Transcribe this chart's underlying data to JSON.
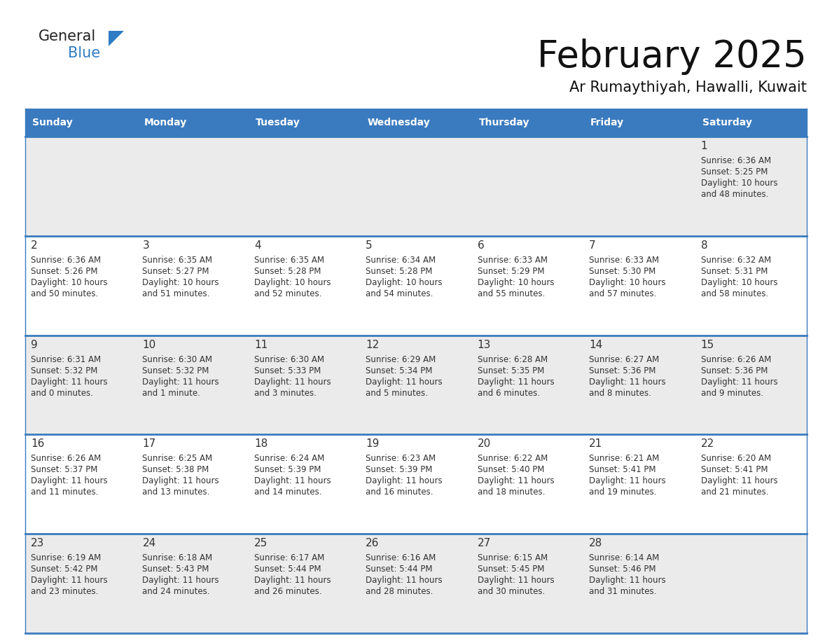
{
  "title": "February 2025",
  "subtitle": "Ar Rumaythiyah, Hawalli, Kuwait",
  "days_of_week": [
    "Sunday",
    "Monday",
    "Tuesday",
    "Wednesday",
    "Thursday",
    "Friday",
    "Saturday"
  ],
  "header_bg": "#3a7bbf",
  "header_text": "#FFFFFF",
  "row_bg_gray": "#EBEBEB",
  "row_bg_white": "#FFFFFF",
  "border_color": "#3a7bbf",
  "day_num_color": "#333333",
  "cell_text_color": "#333333",
  "title_color": "#111111",
  "subtitle_color": "#111111",
  "calendar": [
    [
      null,
      null,
      null,
      null,
      null,
      null,
      {
        "day": 1,
        "sunrise": "6:36 AM",
        "sunset": "5:25 PM",
        "daylight_line1": "Daylight: 10 hours",
        "daylight_line2": "and 48 minutes."
      }
    ],
    [
      {
        "day": 2,
        "sunrise": "6:36 AM",
        "sunset": "5:26 PM",
        "daylight_line1": "Daylight: 10 hours",
        "daylight_line2": "and 50 minutes."
      },
      {
        "day": 3,
        "sunrise": "6:35 AM",
        "sunset": "5:27 PM",
        "daylight_line1": "Daylight: 10 hours",
        "daylight_line2": "and 51 minutes."
      },
      {
        "day": 4,
        "sunrise": "6:35 AM",
        "sunset": "5:28 PM",
        "daylight_line1": "Daylight: 10 hours",
        "daylight_line2": "and 52 minutes."
      },
      {
        "day": 5,
        "sunrise": "6:34 AM",
        "sunset": "5:28 PM",
        "daylight_line1": "Daylight: 10 hours",
        "daylight_line2": "and 54 minutes."
      },
      {
        "day": 6,
        "sunrise": "6:33 AM",
        "sunset": "5:29 PM",
        "daylight_line1": "Daylight: 10 hours",
        "daylight_line2": "and 55 minutes."
      },
      {
        "day": 7,
        "sunrise": "6:33 AM",
        "sunset": "5:30 PM",
        "daylight_line1": "Daylight: 10 hours",
        "daylight_line2": "and 57 minutes."
      },
      {
        "day": 8,
        "sunrise": "6:32 AM",
        "sunset": "5:31 PM",
        "daylight_line1": "Daylight: 10 hours",
        "daylight_line2": "and 58 minutes."
      }
    ],
    [
      {
        "day": 9,
        "sunrise": "6:31 AM",
        "sunset": "5:32 PM",
        "daylight_line1": "Daylight: 11 hours",
        "daylight_line2": "and 0 minutes."
      },
      {
        "day": 10,
        "sunrise": "6:30 AM",
        "sunset": "5:32 PM",
        "daylight_line1": "Daylight: 11 hours",
        "daylight_line2": "and 1 minute."
      },
      {
        "day": 11,
        "sunrise": "6:30 AM",
        "sunset": "5:33 PM",
        "daylight_line1": "Daylight: 11 hours",
        "daylight_line2": "and 3 minutes."
      },
      {
        "day": 12,
        "sunrise": "6:29 AM",
        "sunset": "5:34 PM",
        "daylight_line1": "Daylight: 11 hours",
        "daylight_line2": "and 5 minutes."
      },
      {
        "day": 13,
        "sunrise": "6:28 AM",
        "sunset": "5:35 PM",
        "daylight_line1": "Daylight: 11 hours",
        "daylight_line2": "and 6 minutes."
      },
      {
        "day": 14,
        "sunrise": "6:27 AM",
        "sunset": "5:36 PM",
        "daylight_line1": "Daylight: 11 hours",
        "daylight_line2": "and 8 minutes."
      },
      {
        "day": 15,
        "sunrise": "6:26 AM",
        "sunset": "5:36 PM",
        "daylight_line1": "Daylight: 11 hours",
        "daylight_line2": "and 9 minutes."
      }
    ],
    [
      {
        "day": 16,
        "sunrise": "6:26 AM",
        "sunset": "5:37 PM",
        "daylight_line1": "Daylight: 11 hours",
        "daylight_line2": "and 11 minutes."
      },
      {
        "day": 17,
        "sunrise": "6:25 AM",
        "sunset": "5:38 PM",
        "daylight_line1": "Daylight: 11 hours",
        "daylight_line2": "and 13 minutes."
      },
      {
        "day": 18,
        "sunrise": "6:24 AM",
        "sunset": "5:39 PM",
        "daylight_line1": "Daylight: 11 hours",
        "daylight_line2": "and 14 minutes."
      },
      {
        "day": 19,
        "sunrise": "6:23 AM",
        "sunset": "5:39 PM",
        "daylight_line1": "Daylight: 11 hours",
        "daylight_line2": "and 16 minutes."
      },
      {
        "day": 20,
        "sunrise": "6:22 AM",
        "sunset": "5:40 PM",
        "daylight_line1": "Daylight: 11 hours",
        "daylight_line2": "and 18 minutes."
      },
      {
        "day": 21,
        "sunrise": "6:21 AM",
        "sunset": "5:41 PM",
        "daylight_line1": "Daylight: 11 hours",
        "daylight_line2": "and 19 minutes."
      },
      {
        "day": 22,
        "sunrise": "6:20 AM",
        "sunset": "5:41 PM",
        "daylight_line1": "Daylight: 11 hours",
        "daylight_line2": "and 21 minutes."
      }
    ],
    [
      {
        "day": 23,
        "sunrise": "6:19 AM",
        "sunset": "5:42 PM",
        "daylight_line1": "Daylight: 11 hours",
        "daylight_line2": "and 23 minutes."
      },
      {
        "day": 24,
        "sunrise": "6:18 AM",
        "sunset": "5:43 PM",
        "daylight_line1": "Daylight: 11 hours",
        "daylight_line2": "and 24 minutes."
      },
      {
        "day": 25,
        "sunrise": "6:17 AM",
        "sunset": "5:44 PM",
        "daylight_line1": "Daylight: 11 hours",
        "daylight_line2": "and 26 minutes."
      },
      {
        "day": 26,
        "sunrise": "6:16 AM",
        "sunset": "5:44 PM",
        "daylight_line1": "Daylight: 11 hours",
        "daylight_line2": "and 28 minutes."
      },
      {
        "day": 27,
        "sunrise": "6:15 AM",
        "sunset": "5:45 PM",
        "daylight_line1": "Daylight: 11 hours",
        "daylight_line2": "and 30 minutes."
      },
      {
        "day": 28,
        "sunrise": "6:14 AM",
        "sunset": "5:46 PM",
        "daylight_line1": "Daylight: 11 hours",
        "daylight_line2": "and 31 minutes."
      },
      null
    ]
  ],
  "figsize": [
    11.88,
    9.18
  ],
  "dpi": 100
}
